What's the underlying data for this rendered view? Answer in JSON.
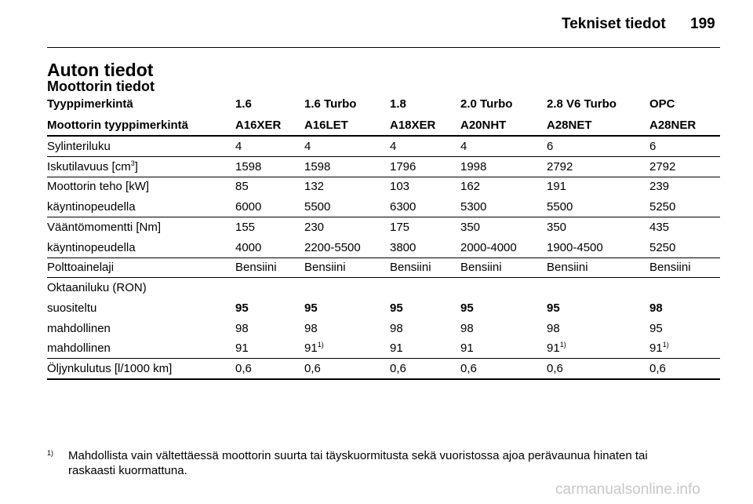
{
  "header": {
    "title": "Tekniset tiedot",
    "page": "199"
  },
  "section": {
    "title": "Auton tiedot",
    "subtitle": "Moottorin tiedot"
  },
  "table": {
    "header_rows": [
      [
        "Tyyppimerkintä",
        "1.6",
        "1.6 Turbo",
        "1.8",
        "2.0 Turbo",
        "2.8 V6 Turbo",
        "OPC"
      ],
      [
        "Moottorin tyyppimerkintä",
        "A16XER",
        "A16LET",
        "A18XER",
        "A20NHT",
        "A28NET",
        "A28NER"
      ]
    ],
    "groups": [
      {
        "rows": [
          {
            "label": "Sylinteriluku",
            "cells": [
              "4",
              "4",
              "4",
              "4",
              "6",
              "6"
            ]
          }
        ]
      },
      {
        "rows": [
          {
            "label": {
              "text": "Iskutilavuus [cm",
              "sup": "3",
              "after": "]"
            },
            "cells": [
              "1598",
              "1598",
              "1796",
              "1998",
              "2792",
              "2792"
            ]
          }
        ]
      },
      {
        "rows": [
          {
            "label": "Moottorin teho [kW]",
            "cells": [
              "85",
              "132",
              "103",
              "162",
              "191",
              "239"
            ]
          },
          {
            "label": "käyntinopeudella",
            "cells": [
              "6000",
              "5500",
              "6300",
              "5300",
              "5500",
              "5250"
            ]
          }
        ]
      },
      {
        "rows": [
          {
            "label": "Vääntömomentti [Nm]",
            "cells": [
              "155",
              "230",
              "175",
              "350",
              "350",
              "435"
            ]
          },
          {
            "label": "käyntinopeudella",
            "cells": [
              "4000",
              "2200-5500",
              "3800",
              "2000-4000",
              "1900-4500",
              "5250"
            ]
          }
        ]
      },
      {
        "rows": [
          {
            "label": "Polttoainelaji",
            "cells": [
              "Bensiini",
              "Bensiini",
              "Bensiini",
              "Bensiini",
              "Bensiini",
              "Bensiini"
            ]
          }
        ]
      },
      {
        "rows": [
          {
            "label": "Oktaaniluku (RON)",
            "cells": []
          },
          {
            "label": "suositeltu",
            "bold": true,
            "cells": [
              "95",
              "95",
              "95",
              "95",
              "95",
              "98"
            ]
          },
          {
            "label": "mahdollinen",
            "cells": [
              "98",
              "98",
              "98",
              "98",
              "98",
              "95"
            ]
          },
          {
            "label": "mahdollinen",
            "cells": [
              "91",
              {
                "text": "91",
                "sup": "1)"
              },
              "91",
              "91",
              {
                "text": "91",
                "sup": "1)"
              },
              {
                "text": "91",
                "sup": "1)"
              }
            ]
          }
        ]
      },
      {
        "rows": [
          {
            "label": "Öljynkulutus [l/1000 km]",
            "cells": [
              "0,6",
              "0,6",
              "0,6",
              "0,6",
              "0,6",
              "0,6"
            ]
          }
        ]
      }
    ]
  },
  "footnote": {
    "mark": "1)",
    "lines": [
      "Mahdollista vain vältettäessä moottorin suurta tai täyskuormitusta sekä vuoristossa ajoa perävaunua hinaten tai",
      "raskaasti kuormattuna."
    ]
  },
  "watermark": "carmanualsonline.info"
}
